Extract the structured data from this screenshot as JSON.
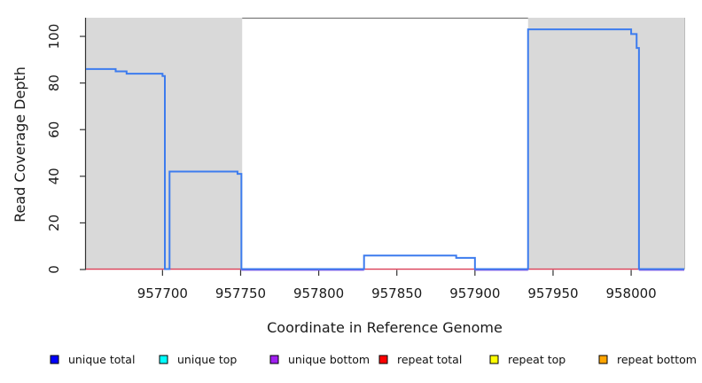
{
  "chart_data": {
    "type": "line",
    "title": "",
    "xlabel": "Coordinate in Reference Genome",
    "ylabel": "Read Coverage Depth",
    "x_ticks": [
      957700,
      957750,
      957800,
      957850,
      957900,
      957950,
      958000
    ],
    "y_ticks": [
      0,
      20,
      40,
      60,
      80,
      100
    ],
    "x_range": [
      957651,
      958034
    ],
    "y_range": [
      0,
      108
    ],
    "grid": false,
    "legend_position": "bottom-horizontal",
    "shading": {
      "name": "repeat-region-shading",
      "color": "#d9d9d9",
      "x_spans": [
        [
          957651,
          957751
        ],
        [
          957934,
          958034
        ]
      ]
    },
    "series": [
      {
        "name": "unique total",
        "line_color": "#3d7cee",
        "points": [
          [
            957651,
            86
          ],
          [
            957670,
            86
          ],
          [
            957670,
            85
          ],
          [
            957677,
            85
          ],
          [
            957677,
            84
          ],
          [
            957700,
            84
          ],
          [
            957700,
            83
          ],
          [
            957701.5,
            83
          ],
          [
            957701.5,
            0
          ],
          [
            957704.5,
            0
          ],
          [
            957704.5,
            42
          ],
          [
            957748,
            42
          ],
          [
            957748,
            41
          ],
          [
            957750.5,
            41
          ],
          [
            957750.5,
            0
          ],
          [
            957829,
            0
          ],
          [
            957829,
            6
          ],
          [
            957888,
            6
          ],
          [
            957888,
            5
          ],
          [
            957900,
            5
          ],
          [
            957900,
            0
          ],
          [
            957934,
            0
          ],
          [
            957934,
            103
          ],
          [
            958000,
            103
          ],
          [
            958000,
            101
          ],
          [
            958003.5,
            101
          ],
          [
            958003.5,
            95
          ],
          [
            958005,
            95
          ],
          [
            958005,
            0
          ],
          [
            958034,
            0
          ]
        ]
      },
      {
        "name": "unique top",
        "line_color": "#00ffff",
        "points": []
      },
      {
        "name": "unique bottom",
        "line_color": "#8a55e6",
        "segments": [
          [
            [
              957750.5,
              0
            ],
            [
              957829,
              0
            ]
          ],
          [
            [
              957900,
              0
            ],
            [
              957934,
              0
            ]
          ],
          [
            [
              958005,
              0
            ],
            [
              958034,
              0
            ]
          ]
        ]
      },
      {
        "name": "repeat total",
        "line_color": "#db3e56",
        "points": [
          [
            957651,
            0
          ],
          [
            958034,
            0
          ]
        ]
      },
      {
        "name": "repeat top",
        "line_color": "#ffff00",
        "points": []
      },
      {
        "name": "repeat bottom",
        "line_color": "#ffa500",
        "points": []
      }
    ],
    "legend": {
      "entries": [
        {
          "label": "unique total",
          "color": "#0000ff"
        },
        {
          "label": "unique top",
          "color": "#00ffff"
        },
        {
          "label": "unique bottom",
          "color": "#a020f0"
        },
        {
          "label": "repeat total",
          "color": "#ff0000"
        },
        {
          "label": "repeat top",
          "color": "#ffff00"
        },
        {
          "label": "repeat bottom",
          "color": "#ffa500"
        }
      ]
    },
    "style_colors": {
      "axis": "#333333",
      "tick_label": "#1a1a1a",
      "plot_top_border": "#7a7a7a",
      "plot_right_border": "#bbbbbb"
    }
  }
}
